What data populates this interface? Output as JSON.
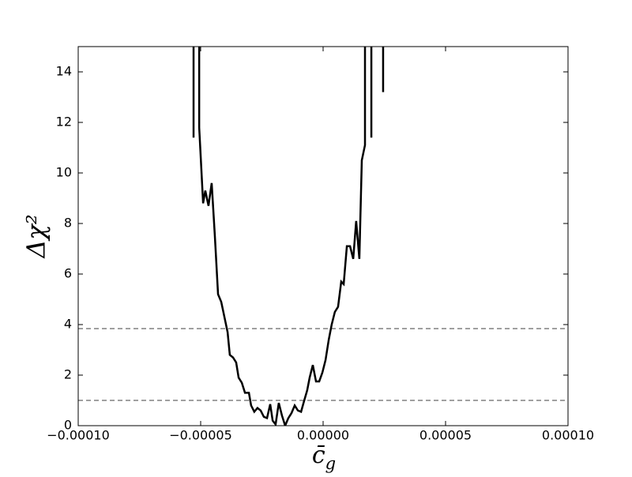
{
  "chart_data": {
    "type": "line",
    "xlabel": "c̄",
    "xlabel_sub": "g",
    "ylabel": "Δχ²",
    "xlim": [
      -0.0001,
      0.0001
    ],
    "xticks": [
      {
        "value": -0.0001,
        "label": "−0.00010"
      },
      {
        "value": -5e-05,
        "label": "−0.00005"
      },
      {
        "value": 0,
        "label": "0.00000"
      },
      {
        "value": 5e-05,
        "label": "0.00005"
      },
      {
        "value": 0.0001,
        "label": "0.00010"
      }
    ],
    "ylim": [
      0,
      15
    ],
    "yticks": [
      0,
      2,
      4,
      6,
      8,
      10,
      12,
      14
    ],
    "hlines": [
      1,
      3.84
    ],
    "hline_color": "#808080",
    "series": [
      {
        "color": "#000000",
        "x": [
          -5.29e-05,
          -5.29e-05,
          null,
          -5.06e-05,
          -5.06e-05,
          -4.9e-05,
          -4.81e-05,
          -4.68e-05,
          -4.55e-05,
          -4.42e-05,
          -4.29e-05,
          -4.16e-05,
          -4.03e-05,
          -3.9e-05,
          -3.81e-05,
          -3.68e-05,
          -3.55e-05,
          -3.45e-05,
          -3.32e-05,
          -3.19e-05,
          -3.03e-05,
          -2.94e-05,
          -2.81e-05,
          -2.68e-05,
          -2.55e-05,
          -2.42e-05,
          -2.29e-05,
          -2.16e-05,
          -2.06e-05,
          -1.94e-05,
          -1.81e-05,
          -1.68e-05,
          -1.55e-05,
          -1.42e-05,
          -1.29e-05,
          -1.16e-05,
          -1.03e-05,
          -9e-06,
          -7.7e-06,
          -6.5e-06,
          -5.5e-06,
          -4.2e-06,
          -2.9e-06,
          -1.6e-06,
          -3e-07,
          1e-06,
          2.3e-06,
          3.5e-06,
          4.8e-06,
          6.1e-06,
          7.4e-06,
          8.4e-06,
          9.7e-06,
          1.1e-05,
          1.23e-05,
          1.35e-05,
          1.48e-05,
          1.58e-05,
          1.71e-05,
          1.71e-05,
          null,
          1.97e-05,
          1.97e-05,
          null,
          2.45e-05,
          2.45e-05
        ],
        "values": [
          15,
          11.4,
          null,
          15,
          11.8,
          8.8,
          9.3,
          8.7,
          9.6,
          7.5,
          5.2,
          4.9,
          4.3,
          3.7,
          2.8,
          2.7,
          2.5,
          1.9,
          1.7,
          1.3,
          1.3,
          0.8,
          0.55,
          0.7,
          0.6,
          0.35,
          0.3,
          0.85,
          0.2,
          0.05,
          0.9,
          0.4,
          0,
          0.3,
          0.5,
          0.8,
          0.6,
          0.55,
          1.0,
          1.4,
          1.9,
          2.4,
          1.75,
          1.75,
          2.1,
          2.6,
          3.4,
          4.0,
          4.5,
          4.7,
          5.7,
          5.6,
          7.1,
          7.1,
          6.6,
          8.1,
          6.6,
          10.5,
          11.1,
          15,
          null,
          15,
          11.4,
          null,
          15,
          13.2
        ]
      }
    ]
  }
}
